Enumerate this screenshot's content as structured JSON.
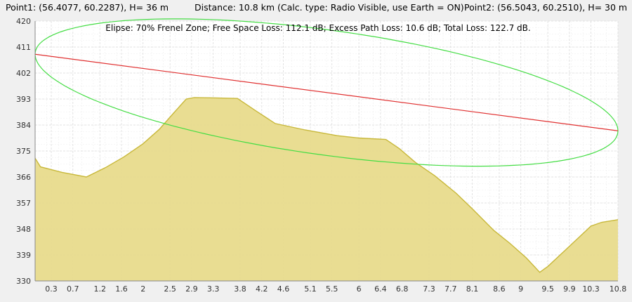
{
  "header": {
    "point1": "Point1: (56.4077, 60.2287), H= 36 m",
    "distance": "Distance: 10.8 km (Calc. type: Radio Visible, use Earth = ON)",
    "point2": "Point2: (56.5043, 60.2510), H= 30 m"
  },
  "chart_data": {
    "type": "area",
    "annotation": "Elipse: 70% Frenel Zone;   Free Space Loss: 112.1 dB;   Excess Path Loss: 10.6 dB;   Total Loss: 122.7 dB.",
    "xlim": [
      0,
      10.8
    ],
    "ylim": [
      330,
      420
    ],
    "x_ticks": [
      0.3,
      0.7,
      1.2,
      1.6,
      2,
      2.5,
      2.9,
      3.3,
      3.8,
      4.2,
      4.6,
      5.1,
      5.5,
      6,
      6.4,
      6.8,
      7.3,
      7.7,
      8.1,
      8.6,
      9,
      9.5,
      9.9,
      10.3,
      10.8
    ],
    "y_ticks": [
      330,
      339,
      348,
      357,
      366,
      375,
      384,
      393,
      402,
      411,
      420
    ],
    "grid": true,
    "colors": {
      "terrain_fill": "#e8db8c",
      "terrain_line": "#c8b83a",
      "los_line": "#e03030",
      "fresnel": "#44dd44"
    },
    "terrain": [
      [
        0,
        372.5
      ],
      [
        0.1,
        369.5
      ],
      [
        0.5,
        367.6
      ],
      [
        0.95,
        366.0
      ],
      [
        1.3,
        369.2
      ],
      [
        1.65,
        373.0
      ],
      [
        2.0,
        377.5
      ],
      [
        2.3,
        382.5
      ],
      [
        2.55,
        387.8
      ],
      [
        2.8,
        393.0
      ],
      [
        2.95,
        393.5
      ],
      [
        3.35,
        393.4
      ],
      [
        3.75,
        393.2
      ],
      [
        4.1,
        388.8
      ],
      [
        4.45,
        384.5
      ],
      [
        5.0,
        382.3
      ],
      [
        5.6,
        380.3
      ],
      [
        6.0,
        379.5
      ],
      [
        6.5,
        379.0
      ],
      [
        6.75,
        375.8
      ],
      [
        7.05,
        371.0
      ],
      [
        7.4,
        366.5
      ],
      [
        7.8,
        360.4
      ],
      [
        8.1,
        355.0
      ],
      [
        8.5,
        347.5
      ],
      [
        8.8,
        343.0
      ],
      [
        9.1,
        338.0
      ],
      [
        9.35,
        333.0
      ],
      [
        9.5,
        335.0
      ],
      [
        9.9,
        342.0
      ],
      [
        10.3,
        349.0
      ],
      [
        10.5,
        350.3
      ],
      [
        10.8,
        351.2
      ]
    ],
    "los": [
      [
        0,
        408.5
      ],
      [
        10.8,
        382.0
      ]
    ],
    "fresnel_ellipse": {
      "center": [
        5.4,
        395.25
      ],
      "semi_major_km": 5.4,
      "semi_minor_m": 21.8,
      "endpoints": [
        [
          0,
          408.5
        ],
        [
          10.8,
          382.0
        ]
      ]
    }
  }
}
